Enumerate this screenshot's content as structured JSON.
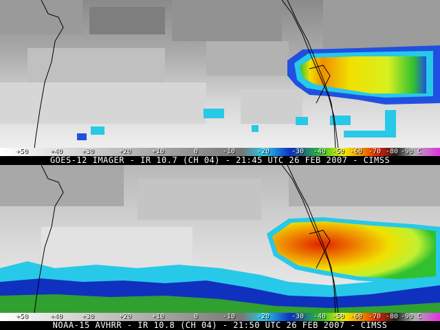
{
  "top_panel": {
    "caption": "GOES-12 IMAGER - IR 10.7 (CH 04) - 21:45 UTC 26 FEB 2007 - CIMSS"
  },
  "bottom_panel": {
    "caption": "NOAA-15 AVHRR - IR 10.8 (CH 04) - 21:50 UTC 26 FEB 2007 - CIMSS"
  },
  "color_scale": {
    "ticks": [
      "+50",
      "+40",
      "+30",
      "+20",
      "+10",
      "0",
      "-10",
      "-20",
      "-30",
      "-40",
      "-50",
      "-60",
      "-70",
      "-80",
      "-90 C"
    ],
    "colors": {
      "warm_gray_light": "#f2f2f2",
      "warm_gray_dark": "#777777",
      "cyan": "#28c8e8",
      "blue": "#1030c0",
      "green": "#30c030",
      "yellow": "#f0f000",
      "orange": "#f09000",
      "red": "#e02000",
      "dark": "#202020",
      "magenta": "#e030e0"
    }
  }
}
